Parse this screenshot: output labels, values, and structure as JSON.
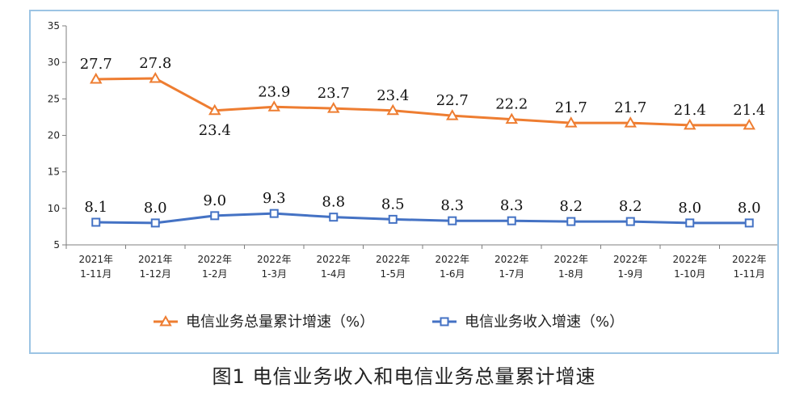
{
  "chart_data": {
    "type": "line",
    "categories": [
      [
        "2021年",
        "1-11月"
      ],
      [
        "2021年",
        "1-12月"
      ],
      [
        "2022年",
        "1-2月"
      ],
      [
        "2022年",
        "1-3月"
      ],
      [
        "2022年",
        "1-4月"
      ],
      [
        "2022年",
        "1-5月"
      ],
      [
        "2022年",
        "1-6月"
      ],
      [
        "2022年",
        "1-7月"
      ],
      [
        "2022年",
        "1-8月"
      ],
      [
        "2022年",
        "1-9月"
      ],
      [
        "2022年",
        "1-10月"
      ],
      [
        "2022年",
        "1-11月"
      ]
    ],
    "ylim": [
      5,
      35
    ],
    "yticks": [
      5,
      10,
      15,
      20,
      25,
      30,
      35
    ],
    "grid": false,
    "legend_position": "bottom",
    "series": [
      {
        "name": "电信业务总量累计增速（%）",
        "color": "#ee7d31",
        "marker": "triangle",
        "values": [
          27.7,
          27.8,
          23.4,
          23.9,
          23.7,
          23.4,
          22.7,
          22.2,
          21.7,
          21.7,
          21.4,
          21.4
        ],
        "labels": [
          "27.7",
          "27.8",
          "23.4",
          "23.9",
          "23.7",
          "23.4",
          "22.7",
          "22.2",
          "21.7",
          "21.7",
          "21.4",
          "21.4"
        ],
        "label_placement": [
          "above",
          "above",
          "below",
          "above",
          "above",
          "above",
          "above",
          "above",
          "above",
          "above",
          "above",
          "above"
        ]
      },
      {
        "name": "电信业务收入增速（%）",
        "color": "#4472c4",
        "marker": "square",
        "values": [
          8.1,
          8.0,
          9.0,
          9.3,
          8.8,
          8.5,
          8.3,
          8.3,
          8.2,
          8.2,
          8.0,
          8.0
        ],
        "labels": [
          "8.1",
          "8.0",
          "9.0",
          "9.3",
          "8.8",
          "8.5",
          "8.3",
          "8.3",
          "8.2",
          "8.2",
          "8.0",
          "8.0"
        ],
        "label_placement": [
          "above",
          "above",
          "above",
          "above",
          "above",
          "above",
          "above",
          "above",
          "above",
          "above",
          "above",
          "above"
        ]
      }
    ],
    "caption": "图1  电信业务收入和电信业务总量累计增速"
  }
}
